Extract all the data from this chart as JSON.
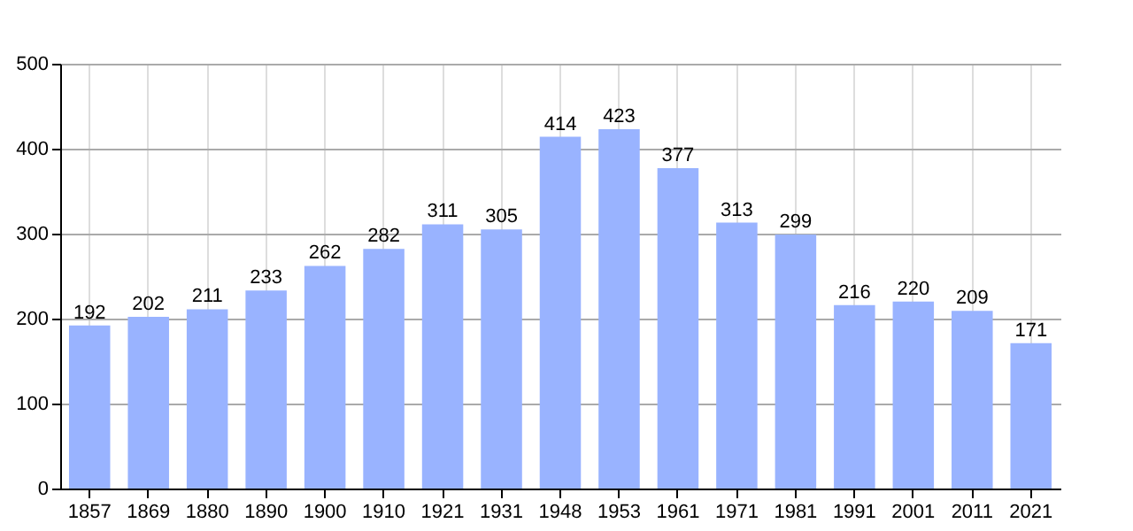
{
  "chart_data": {
    "type": "bar",
    "categories": [
      "1857",
      "1869",
      "1880",
      "1890",
      "1900",
      "1910",
      "1921",
      "1931",
      "1948",
      "1953",
      "1961",
      "1971",
      "1981",
      "1991",
      "2001",
      "2011",
      "2021"
    ],
    "values": [
      192,
      202,
      211,
      233,
      262,
      282,
      311,
      305,
      414,
      423,
      377,
      313,
      299,
      216,
      220,
      209,
      171
    ],
    "color": "#99b3ff",
    "ylim": [
      0,
      500
    ],
    "yticks": [
      0,
      100,
      200,
      300,
      400,
      500
    ],
    "grid": true,
    "data_labels": true
  }
}
